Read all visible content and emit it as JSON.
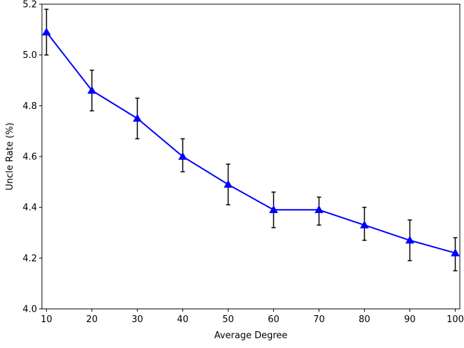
{
  "chart_data": {
    "type": "line",
    "title": "",
    "xlabel": "Average Degree",
    "ylabel": "Uncle Rate (%)",
    "xlim": [
      9,
      101
    ],
    "ylim": [
      4.0,
      5.2
    ],
    "xticks": [
      "10",
      "20",
      "30",
      "40",
      "50",
      "60",
      "70",
      "80",
      "90",
      "100"
    ],
    "yticks": [
      "4.0",
      "4.2",
      "4.4",
      "4.6",
      "4.8",
      "5.0",
      "5.2"
    ],
    "grid": false,
    "legend": "none",
    "series": [
      {
        "color": "#0000ff",
        "marker": "triangle-up",
        "errorbar_color": "#000000",
        "points": [
          {
            "x": 10,
            "y": 5.09,
            "ymin": 5.0,
            "ymax": 5.18
          },
          {
            "x": 20,
            "y": 4.86,
            "ymin": 4.78,
            "ymax": 4.94
          },
          {
            "x": 30,
            "y": 4.75,
            "ymin": 4.67,
            "ymax": 4.83
          },
          {
            "x": 40,
            "y": 4.6,
            "ymin": 4.54,
            "ymax": 4.67
          },
          {
            "x": 50,
            "y": 4.49,
            "ymin": 4.41,
            "ymax": 4.57
          },
          {
            "x": 60,
            "y": 4.39,
            "ymin": 4.32,
            "ymax": 4.46
          },
          {
            "x": 70,
            "y": 4.39,
            "ymin": 4.33,
            "ymax": 4.44
          },
          {
            "x": 80,
            "y": 4.33,
            "ymin": 4.27,
            "ymax": 4.4
          },
          {
            "x": 90,
            "y": 4.27,
            "ymin": 4.19,
            "ymax": 4.35
          },
          {
            "x": 100,
            "y": 4.22,
            "ymin": 4.15,
            "ymax": 4.28
          }
        ]
      }
    ]
  }
}
